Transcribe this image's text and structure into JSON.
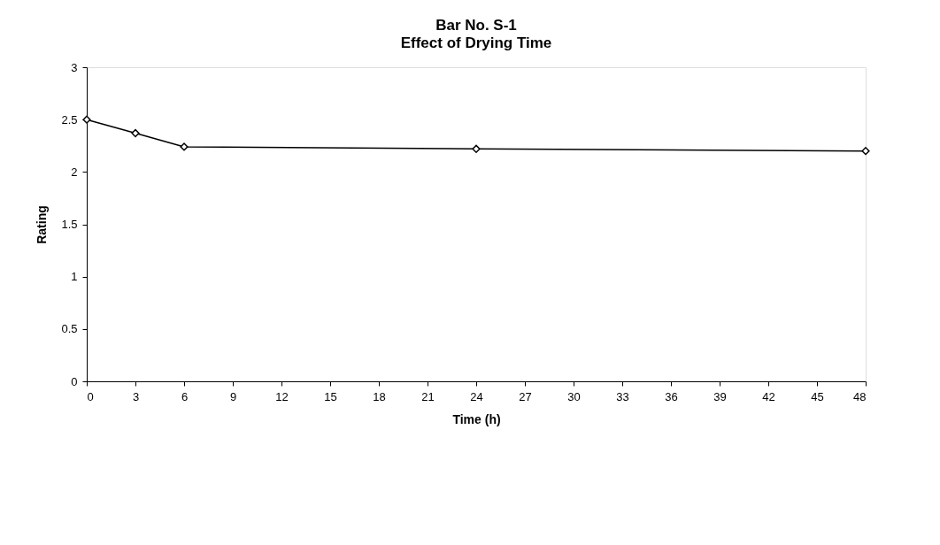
{
  "chart_data": {
    "type": "line",
    "title": "Bar No. S-1",
    "subtitle": "Effect of Drying Time",
    "xlabel": "Time (h)",
    "ylabel": "Rating",
    "x": [
      0,
      3,
      6,
      24,
      48
    ],
    "series": [
      {
        "color": "#000000",
        "values": [
          2.5,
          2.37,
          2.24,
          2.22,
          2.2
        ]
      }
    ],
    "xlim": [
      0,
      48
    ],
    "xticks": [
      0,
      3,
      6,
      9,
      12,
      15,
      18,
      21,
      24,
      27,
      30,
      33,
      36,
      39,
      42,
      45,
      48
    ],
    "ylim": [
      0,
      3
    ],
    "yticks": [
      0,
      0.5,
      1,
      1.5,
      2,
      2.5,
      3
    ],
    "grid": false,
    "legend": false,
    "marker": "diamond",
    "line_style": "solid"
  }
}
